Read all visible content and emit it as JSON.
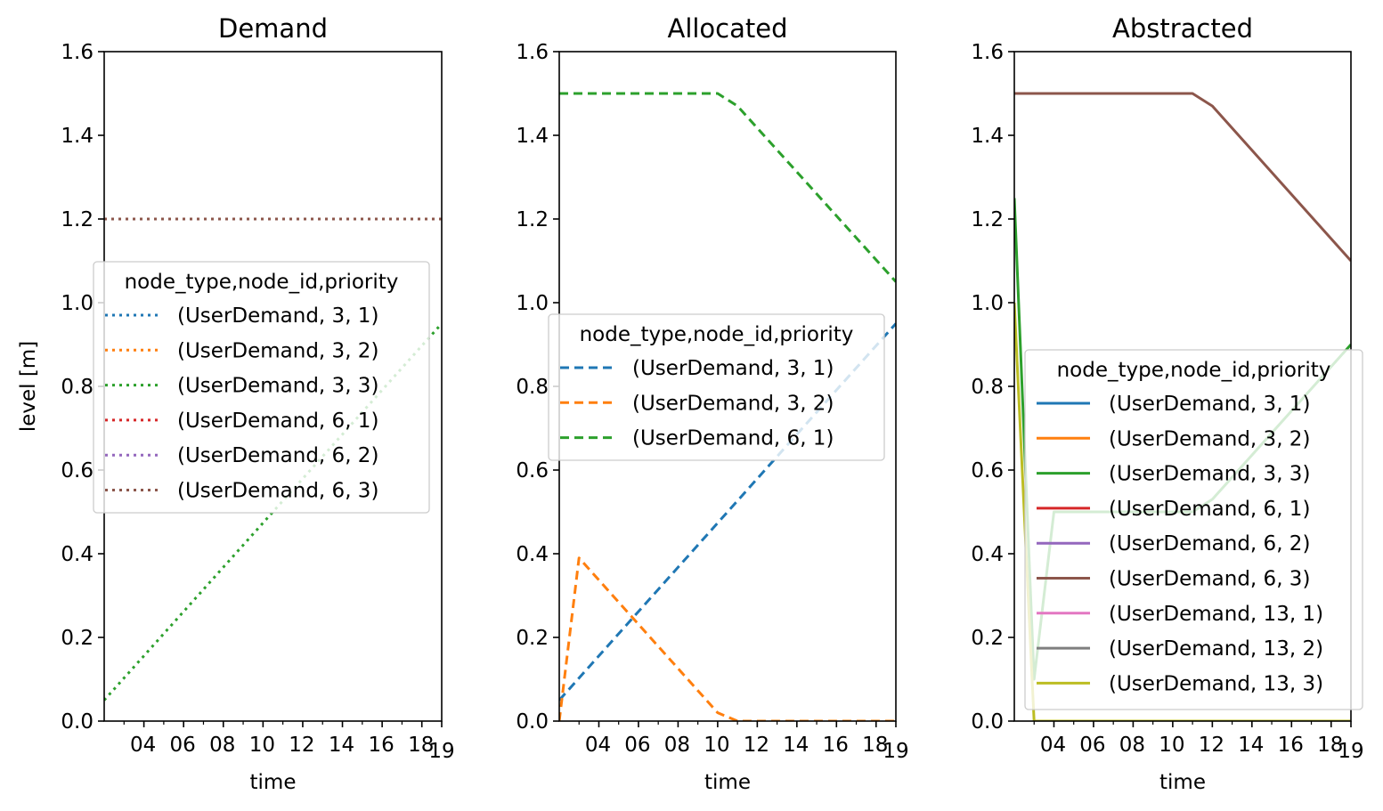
{
  "colors": {
    "tab_blue": "#1f77b4",
    "tab_orange": "#ff7f0e",
    "tab_green": "#2ca02c",
    "tab_red": "#d62728",
    "tab_purple": "#9467bd",
    "tab_brown": "#8c564b",
    "tab_pink": "#e377c2",
    "tab_gray": "#7f7f7f",
    "tab_olive": "#bcbd22"
  },
  "chart_data": [
    {
      "type": "line",
      "title": "Demand",
      "xlabel": "time",
      "ylabel": "level [m]",
      "line_style": "dotted",
      "xlim": [
        2,
        19
      ],
      "ylim": [
        0,
        1.6
      ],
      "yticks": [
        "0.0",
        "0.2",
        "0.4",
        "0.6",
        "0.8",
        "1.0",
        "1.2",
        "1.4",
        "1.6"
      ],
      "xticks": [
        {
          "value": 4,
          "label": "04"
        },
        {
          "value": 6,
          "label": "06"
        },
        {
          "value": 8,
          "label": "08"
        },
        {
          "value": 10,
          "label": "10"
        },
        {
          "value": 12,
          "label": "12"
        },
        {
          "value": 14,
          "label": "14"
        },
        {
          "value": 16,
          "label": "16"
        },
        {
          "value": 18,
          "label": "18"
        },
        {
          "value": 19,
          "label": "19"
        }
      ],
      "legend": {
        "title": "node_type,node_id,priority",
        "placement": "center-left"
      },
      "series": [
        {
          "name": "(UserDemand, 3, 1)",
          "color": "#1f77b4",
          "x": [],
          "y": []
        },
        {
          "name": "(UserDemand, 3, 2)",
          "color": "#ff7f0e",
          "x": [],
          "y": []
        },
        {
          "name": "(UserDemand, 3, 3)",
          "color": "#2ca02c",
          "x": [
            2,
            19
          ],
          "y": [
            0.05,
            0.95
          ]
        },
        {
          "name": "(UserDemand, 6, 1)",
          "color": "#d62728",
          "x": [],
          "y": []
        },
        {
          "name": "(UserDemand, 6, 2)",
          "color": "#9467bd",
          "x": [],
          "y": []
        },
        {
          "name": "(UserDemand, 6, 3)",
          "color": "#8c564b",
          "x": [
            2,
            19
          ],
          "y": [
            1.2,
            1.2
          ]
        }
      ]
    },
    {
      "type": "line",
      "title": "Allocated",
      "xlabel": "time",
      "ylabel": "",
      "line_style": "dashed",
      "xlim": [
        2,
        19
      ],
      "ylim": [
        0,
        1.6
      ],
      "yticks": [
        "0.0",
        "0.2",
        "0.4",
        "0.6",
        "0.8",
        "1.0",
        "1.2",
        "1.4",
        "1.6"
      ],
      "xticks": [
        {
          "value": 4,
          "label": "04"
        },
        {
          "value": 6,
          "label": "06"
        },
        {
          "value": 8,
          "label": "08"
        },
        {
          "value": 10,
          "label": "10"
        },
        {
          "value": 12,
          "label": "12"
        },
        {
          "value": 14,
          "label": "14"
        },
        {
          "value": 16,
          "label": "16"
        },
        {
          "value": 18,
          "label": "18"
        },
        {
          "value": 19,
          "label": "19"
        }
      ],
      "legend": {
        "title": "node_type,node_id,priority",
        "placement": "center"
      },
      "series": [
        {
          "name": "(UserDemand, 3, 1)",
          "color": "#1f77b4",
          "x": [
            2,
            19
          ],
          "y": [
            0.05,
            0.95
          ]
        },
        {
          "name": "(UserDemand, 3, 2)",
          "color": "#ff7f0e",
          "x": [
            2,
            3,
            10,
            11,
            19
          ],
          "y": [
            0,
            0.39,
            0.02,
            0,
            0
          ]
        },
        {
          "name": "(UserDemand, 6, 1)",
          "color": "#2ca02c",
          "x": [
            2,
            10,
            11,
            19
          ],
          "y": [
            1.5,
            1.5,
            1.47,
            1.05
          ]
        }
      ]
    },
    {
      "type": "line",
      "title": "Abstracted",
      "xlabel": "time",
      "ylabel": "",
      "line_style": "solid",
      "xlim": [
        2,
        19
      ],
      "ylim": [
        0,
        1.6
      ],
      "yticks": [
        "0.0",
        "0.2",
        "0.4",
        "0.6",
        "0.8",
        "1.0",
        "1.2",
        "1.4",
        "1.6"
      ],
      "xticks": [
        {
          "value": 4,
          "label": "04"
        },
        {
          "value": 6,
          "label": "06"
        },
        {
          "value": 8,
          "label": "08"
        },
        {
          "value": 10,
          "label": "10"
        },
        {
          "value": 12,
          "label": "12"
        },
        {
          "value": 14,
          "label": "14"
        },
        {
          "value": 16,
          "label": "16"
        },
        {
          "value": 18,
          "label": "18"
        },
        {
          "value": 19,
          "label": "19"
        }
      ],
      "legend": {
        "title": "node_type,node_id,priority",
        "placement": "lower-right"
      },
      "series": [
        {
          "name": "(UserDemand, 3, 1)",
          "color": "#1f77b4",
          "x": [],
          "y": []
        },
        {
          "name": "(UserDemand, 3, 2)",
          "color": "#ff7f0e",
          "x": [],
          "y": []
        },
        {
          "name": "(UserDemand, 3, 3)",
          "color": "#2ca02c",
          "x": [
            2,
            3,
            4,
            11,
            12,
            19
          ],
          "y": [
            1.25,
            0.1,
            0.5,
            0.5,
            0.53,
            0.9
          ]
        },
        {
          "name": "(UserDemand, 6, 1)",
          "color": "#d62728",
          "x": [],
          "y": []
        },
        {
          "name": "(UserDemand, 6, 2)",
          "color": "#9467bd",
          "x": [],
          "y": []
        },
        {
          "name": "(UserDemand, 6, 3)",
          "color": "#8c564b",
          "x": [
            2,
            11,
            12,
            19
          ],
          "y": [
            1.5,
            1.5,
            1.47,
            1.1
          ]
        },
        {
          "name": "(UserDemand, 13, 1)",
          "color": "#e377c2",
          "x": [],
          "y": []
        },
        {
          "name": "(UserDemand, 13, 2)",
          "color": "#7f7f7f",
          "x": [],
          "y": []
        },
        {
          "name": "(UserDemand, 13, 3)",
          "color": "#bcbd22",
          "x": [
            2,
            3,
            19
          ],
          "y": [
            1.0,
            0,
            0
          ]
        }
      ]
    }
  ]
}
